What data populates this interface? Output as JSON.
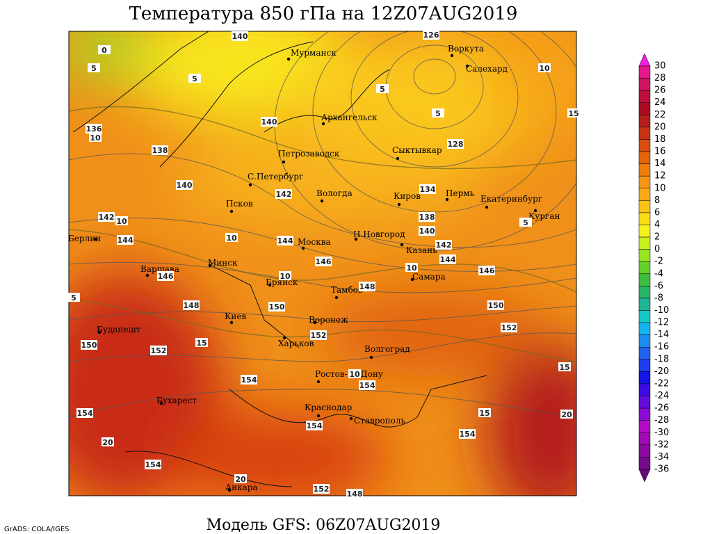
{
  "title": "Температура 850 гПа на 12Z07AUG2019",
  "footer": "Модель GFS: 06Z07AUG2019",
  "credit": "GrADS: COLA/IGES",
  "cities": [
    "Мурманск",
    "Воркута",
    "Салехард",
    "Архангельск",
    "Петрозаводск",
    "Сыктывкар",
    "С.Петербург",
    "Вологда",
    "Киров",
    "Пермь",
    "Екатеринбург",
    "Курган",
    "Псков",
    "Берлин",
    "Москва",
    "Н.Новгород",
    "Казань",
    "Минск",
    "Варшава",
    "Самара",
    "Брянск",
    "Тамбов",
    "Воронеж",
    "Киев",
    "Будапешт",
    "Харьков",
    "Волгоград",
    "Ростов-на-Дону",
    "Бухарест",
    "Краснодар",
    "Ставрополь",
    "Анкара"
  ],
  "contour_labels": [
    "140",
    "126",
    "136",
    "138",
    "140",
    "128",
    "140",
    "134",
    "142",
    "142",
    "138",
    "140",
    "144",
    "144",
    "142",
    "146",
    "144",
    "146",
    "146",
    "148",
    "148",
    "150",
    "150",
    "152",
    "152",
    "150",
    "152",
    "154",
    "154",
    "154",
    "154",
    "154",
    "154",
    "152",
    "148"
  ],
  "temp_labels": [
    "0",
    "5",
    "5",
    "10",
    "5",
    "5",
    "10",
    "10",
    "10",
    "10",
    "5",
    "10",
    "5",
    "15",
    "15",
    "10",
    "15",
    "15",
    "20",
    "20",
    "20"
  ],
  "colorbar": {
    "labels": [
      "30",
      "28",
      "26",
      "24",
      "22",
      "20",
      "18",
      "16",
      "14",
      "12",
      "10",
      "8",
      "6",
      "4",
      "2",
      "0",
      "-2",
      "-4",
      "-6",
      "-8",
      "-10",
      "-12",
      "-14",
      "-16",
      "-18",
      "-20",
      "-22",
      "-24",
      "-26",
      "-28",
      "-30",
      "-32",
      "-34",
      "-36"
    ],
    "colors": [
      "#f01ee6",
      "#e6168c",
      "#d21464",
      "#be0f3c",
      "#aa0a1e",
      "#b41e1e",
      "#c83214",
      "#dc4b0f",
      "#e6640a",
      "#f07d0a",
      "#f59614",
      "#faaa14",
      "#fac314",
      "#fadc14",
      "#f5f01e",
      "#c8f01e",
      "#96e61e",
      "#64d228",
      "#3cbe3c",
      "#28b464",
      "#1eb496",
      "#14c8c8",
      "#14b4f0",
      "#1e8cf0",
      "#1e64f0",
      "#1e3cf0",
      "#1414e6",
      "#3c0ae6",
      "#640adc",
      "#8c0ad2",
      "#b40ac8",
      "#a00ab4",
      "#8c0aa0",
      "#780a8c",
      "#640a78"
    ]
  }
}
